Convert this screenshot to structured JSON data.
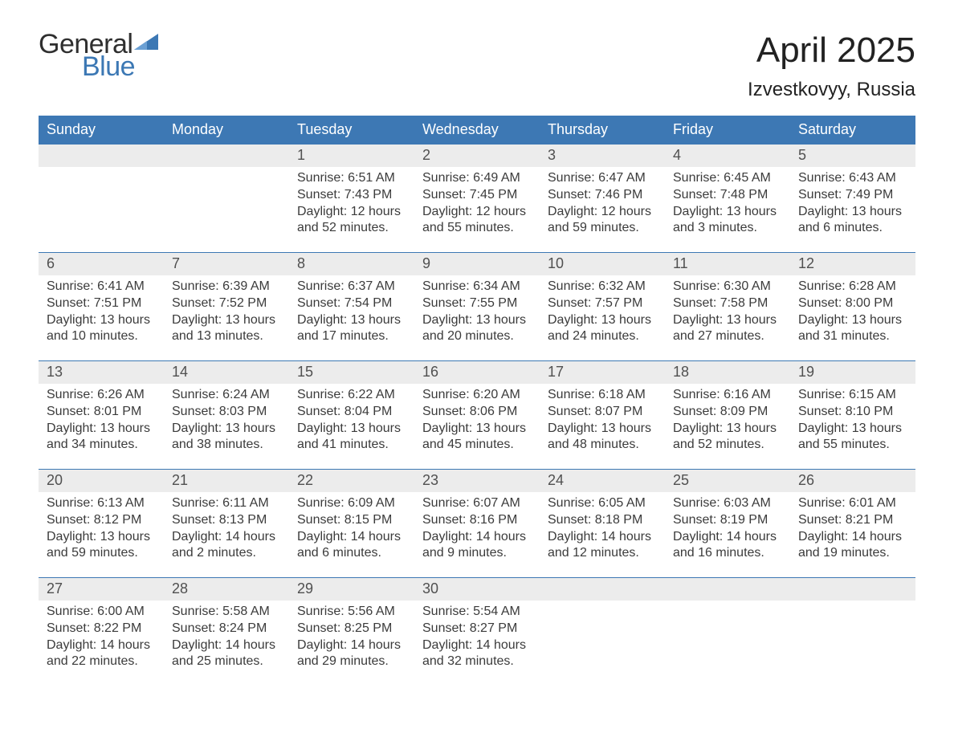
{
  "logo": {
    "text_general": "General",
    "text_blue": "Blue",
    "accent_color": "#3c78b4",
    "text_color": "#2f2f2f"
  },
  "header": {
    "title": "April 2025",
    "location": "Izvestkovyy, Russia"
  },
  "colors": {
    "header_bg": "#3d78b4",
    "header_text": "#ffffff",
    "daynum_bg": "#ececec",
    "daynum_text": "#505050",
    "body_text": "#3b3b3b",
    "week_border": "#3d78b4",
    "page_bg": "#ffffff"
  },
  "typography": {
    "title_fontsize": 44,
    "location_fontsize": 24,
    "weekday_fontsize": 18,
    "daynum_fontsize": 18,
    "body_fontsize": 16,
    "font_family": "Arial, Helvetica, sans-serif"
  },
  "weekdays": [
    "Sunday",
    "Monday",
    "Tuesday",
    "Wednesday",
    "Thursday",
    "Friday",
    "Saturday"
  ],
  "weeks": [
    {
      "days": [
        {
          "num": "",
          "sunrise": "",
          "sunset": "",
          "daylight1": "",
          "daylight2": ""
        },
        {
          "num": "",
          "sunrise": "",
          "sunset": "",
          "daylight1": "",
          "daylight2": ""
        },
        {
          "num": "1",
          "sunrise": "Sunrise: 6:51 AM",
          "sunset": "Sunset: 7:43 PM",
          "daylight1": "Daylight: 12 hours",
          "daylight2": "and 52 minutes."
        },
        {
          "num": "2",
          "sunrise": "Sunrise: 6:49 AM",
          "sunset": "Sunset: 7:45 PM",
          "daylight1": "Daylight: 12 hours",
          "daylight2": "and 55 minutes."
        },
        {
          "num": "3",
          "sunrise": "Sunrise: 6:47 AM",
          "sunset": "Sunset: 7:46 PM",
          "daylight1": "Daylight: 12 hours",
          "daylight2": "and 59 minutes."
        },
        {
          "num": "4",
          "sunrise": "Sunrise: 6:45 AM",
          "sunset": "Sunset: 7:48 PM",
          "daylight1": "Daylight: 13 hours",
          "daylight2": "and 3 minutes."
        },
        {
          "num": "5",
          "sunrise": "Sunrise: 6:43 AM",
          "sunset": "Sunset: 7:49 PM",
          "daylight1": "Daylight: 13 hours",
          "daylight2": "and 6 minutes."
        }
      ]
    },
    {
      "days": [
        {
          "num": "6",
          "sunrise": "Sunrise: 6:41 AM",
          "sunset": "Sunset: 7:51 PM",
          "daylight1": "Daylight: 13 hours",
          "daylight2": "and 10 minutes."
        },
        {
          "num": "7",
          "sunrise": "Sunrise: 6:39 AM",
          "sunset": "Sunset: 7:52 PM",
          "daylight1": "Daylight: 13 hours",
          "daylight2": "and 13 minutes."
        },
        {
          "num": "8",
          "sunrise": "Sunrise: 6:37 AM",
          "sunset": "Sunset: 7:54 PM",
          "daylight1": "Daylight: 13 hours",
          "daylight2": "and 17 minutes."
        },
        {
          "num": "9",
          "sunrise": "Sunrise: 6:34 AM",
          "sunset": "Sunset: 7:55 PM",
          "daylight1": "Daylight: 13 hours",
          "daylight2": "and 20 minutes."
        },
        {
          "num": "10",
          "sunrise": "Sunrise: 6:32 AM",
          "sunset": "Sunset: 7:57 PM",
          "daylight1": "Daylight: 13 hours",
          "daylight2": "and 24 minutes."
        },
        {
          "num": "11",
          "sunrise": "Sunrise: 6:30 AM",
          "sunset": "Sunset: 7:58 PM",
          "daylight1": "Daylight: 13 hours",
          "daylight2": "and 27 minutes."
        },
        {
          "num": "12",
          "sunrise": "Sunrise: 6:28 AM",
          "sunset": "Sunset: 8:00 PM",
          "daylight1": "Daylight: 13 hours",
          "daylight2": "and 31 minutes."
        }
      ]
    },
    {
      "days": [
        {
          "num": "13",
          "sunrise": "Sunrise: 6:26 AM",
          "sunset": "Sunset: 8:01 PM",
          "daylight1": "Daylight: 13 hours",
          "daylight2": "and 34 minutes."
        },
        {
          "num": "14",
          "sunrise": "Sunrise: 6:24 AM",
          "sunset": "Sunset: 8:03 PM",
          "daylight1": "Daylight: 13 hours",
          "daylight2": "and 38 minutes."
        },
        {
          "num": "15",
          "sunrise": "Sunrise: 6:22 AM",
          "sunset": "Sunset: 8:04 PM",
          "daylight1": "Daylight: 13 hours",
          "daylight2": "and 41 minutes."
        },
        {
          "num": "16",
          "sunrise": "Sunrise: 6:20 AM",
          "sunset": "Sunset: 8:06 PM",
          "daylight1": "Daylight: 13 hours",
          "daylight2": "and 45 minutes."
        },
        {
          "num": "17",
          "sunrise": "Sunrise: 6:18 AM",
          "sunset": "Sunset: 8:07 PM",
          "daylight1": "Daylight: 13 hours",
          "daylight2": "and 48 minutes."
        },
        {
          "num": "18",
          "sunrise": "Sunrise: 6:16 AM",
          "sunset": "Sunset: 8:09 PM",
          "daylight1": "Daylight: 13 hours",
          "daylight2": "and 52 minutes."
        },
        {
          "num": "19",
          "sunrise": "Sunrise: 6:15 AM",
          "sunset": "Sunset: 8:10 PM",
          "daylight1": "Daylight: 13 hours",
          "daylight2": "and 55 minutes."
        }
      ]
    },
    {
      "days": [
        {
          "num": "20",
          "sunrise": "Sunrise: 6:13 AM",
          "sunset": "Sunset: 8:12 PM",
          "daylight1": "Daylight: 13 hours",
          "daylight2": "and 59 minutes."
        },
        {
          "num": "21",
          "sunrise": "Sunrise: 6:11 AM",
          "sunset": "Sunset: 8:13 PM",
          "daylight1": "Daylight: 14 hours",
          "daylight2": "and 2 minutes."
        },
        {
          "num": "22",
          "sunrise": "Sunrise: 6:09 AM",
          "sunset": "Sunset: 8:15 PM",
          "daylight1": "Daylight: 14 hours",
          "daylight2": "and 6 minutes."
        },
        {
          "num": "23",
          "sunrise": "Sunrise: 6:07 AM",
          "sunset": "Sunset: 8:16 PM",
          "daylight1": "Daylight: 14 hours",
          "daylight2": "and 9 minutes."
        },
        {
          "num": "24",
          "sunrise": "Sunrise: 6:05 AM",
          "sunset": "Sunset: 8:18 PM",
          "daylight1": "Daylight: 14 hours",
          "daylight2": "and 12 minutes."
        },
        {
          "num": "25",
          "sunrise": "Sunrise: 6:03 AM",
          "sunset": "Sunset: 8:19 PM",
          "daylight1": "Daylight: 14 hours",
          "daylight2": "and 16 minutes."
        },
        {
          "num": "26",
          "sunrise": "Sunrise: 6:01 AM",
          "sunset": "Sunset: 8:21 PM",
          "daylight1": "Daylight: 14 hours",
          "daylight2": "and 19 minutes."
        }
      ]
    },
    {
      "days": [
        {
          "num": "27",
          "sunrise": "Sunrise: 6:00 AM",
          "sunset": "Sunset: 8:22 PM",
          "daylight1": "Daylight: 14 hours",
          "daylight2": "and 22 minutes."
        },
        {
          "num": "28",
          "sunrise": "Sunrise: 5:58 AM",
          "sunset": "Sunset: 8:24 PM",
          "daylight1": "Daylight: 14 hours",
          "daylight2": "and 25 minutes."
        },
        {
          "num": "29",
          "sunrise": "Sunrise: 5:56 AM",
          "sunset": "Sunset: 8:25 PM",
          "daylight1": "Daylight: 14 hours",
          "daylight2": "and 29 minutes."
        },
        {
          "num": "30",
          "sunrise": "Sunrise: 5:54 AM",
          "sunset": "Sunset: 8:27 PM",
          "daylight1": "Daylight: 14 hours",
          "daylight2": "and 32 minutes."
        },
        {
          "num": "",
          "sunrise": "",
          "sunset": "",
          "daylight1": "",
          "daylight2": ""
        },
        {
          "num": "",
          "sunrise": "",
          "sunset": "",
          "daylight1": "",
          "daylight2": ""
        },
        {
          "num": "",
          "sunrise": "",
          "sunset": "",
          "daylight1": "",
          "daylight2": ""
        }
      ]
    }
  ]
}
